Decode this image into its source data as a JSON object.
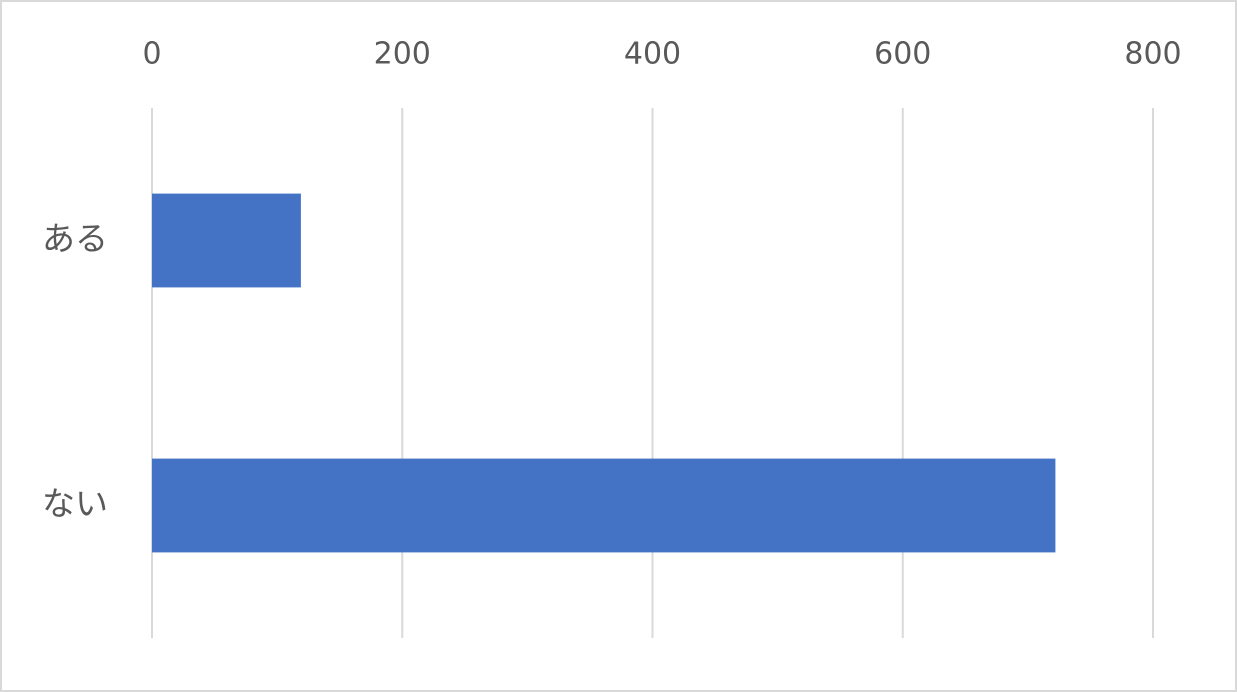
{
  "chart_data": {
    "type": "bar",
    "orientation": "horizontal",
    "categories": [
      "ある",
      "ない"
    ],
    "values": [
      119,
      722
    ],
    "color": "#4472c4",
    "xlim": [
      0,
      800
    ],
    "xticks": [
      0,
      200,
      400,
      600,
      800
    ],
    "grid": true
  }
}
